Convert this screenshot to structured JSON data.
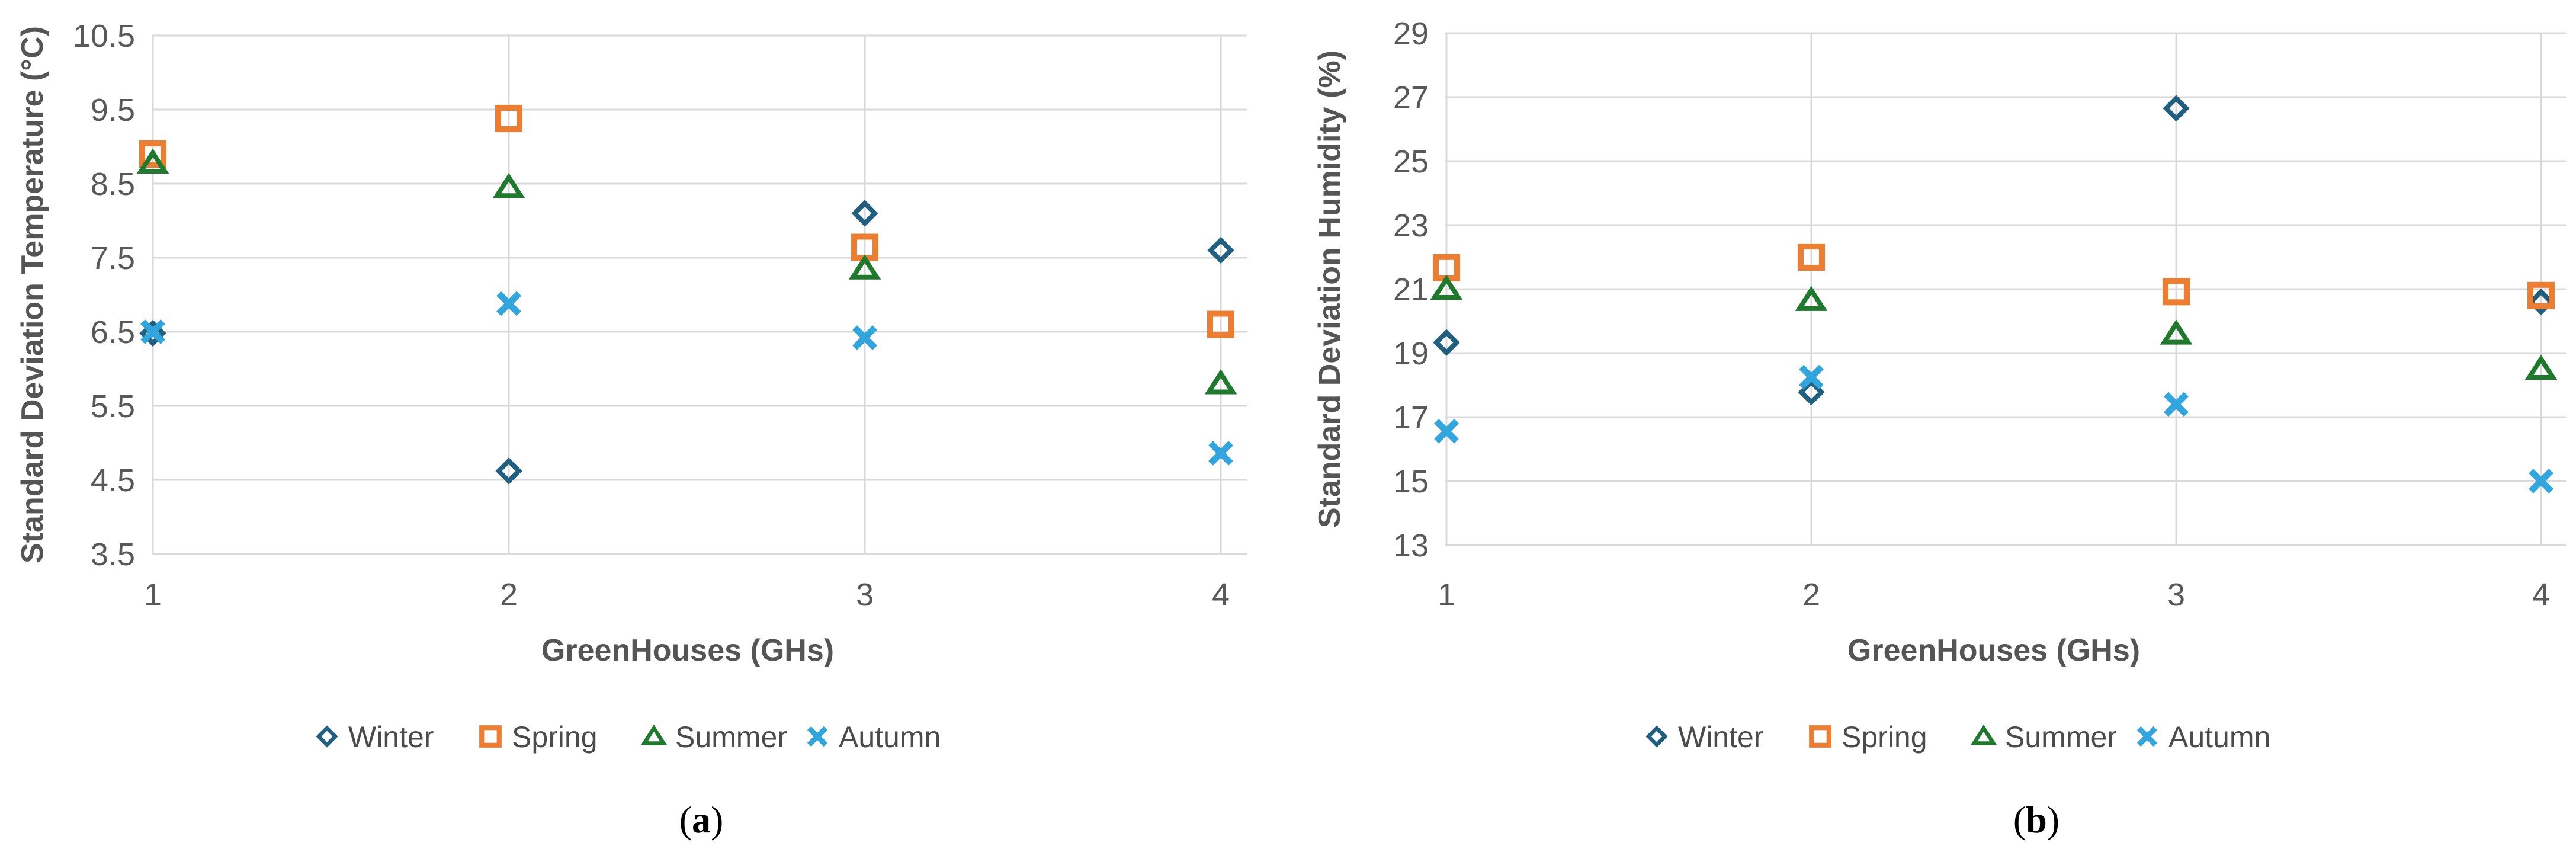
{
  "figure": {
    "background": "#ffffff",
    "style": {
      "grid_color": "#d9d9d9",
      "tick_color": "#595959",
      "title_color": "#555555",
      "legend_text_color": "#4b4b4b",
      "caption_color": "#000000"
    },
    "captions": [
      {
        "open": "(",
        "letter": "a",
        "close": ")"
      },
      {
        "open": "(",
        "letter": "b",
        "close": ")"
      }
    ]
  },
  "chart_data": [
    {
      "type": "scatter",
      "panel": "a",
      "title": "",
      "xlabel": "GreenHouses (GHs)",
      "ylabel": "Standard Deviation Temperature (°C)",
      "categories": [
        1,
        2,
        3,
        4
      ],
      "ylim": [
        3.5,
        10.5
      ],
      "yticks": [
        10.5,
        9.5,
        8.5,
        7.5,
        6.5,
        5.5,
        4.5,
        3.5
      ],
      "grid": "horizontal and vertical gridlines, light gray",
      "legend_position": "bottom",
      "series": [
        {
          "name": "Winter",
          "marker": "diamond",
          "color": "#215f80",
          "values": [
            6.48,
            4.62,
            8.1,
            7.6
          ]
        },
        {
          "name": "Spring",
          "marker": "square",
          "color": "#ed7d31",
          "values": [
            8.9,
            9.38,
            7.64,
            6.6
          ]
        },
        {
          "name": "Summer",
          "marker": "triangle",
          "color": "#1f7a2d",
          "values": [
            8.78,
            8.45,
            7.35,
            5.8
          ]
        },
        {
          "name": "Autumn",
          "marker": "x",
          "color": "#30a5de",
          "values": [
            6.5,
            6.88,
            6.42,
            4.86
          ]
        }
      ]
    },
    {
      "type": "scatter",
      "panel": "b",
      "title": "",
      "xlabel": "GreenHouses (GHs)",
      "ylabel": "Standard Deviation Humidity (%)",
      "categories": [
        1,
        2,
        3,
        4
      ],
      "ylim": [
        13,
        29
      ],
      "yticks": [
        29,
        27,
        25,
        23,
        21,
        19,
        17,
        15,
        13
      ],
      "grid": "horizontal and vertical gridlines, light gray",
      "legend_position": "bottom",
      "series": [
        {
          "name": "Winter",
          "marker": "diamond",
          "color": "#215f80",
          "values": [
            19.33,
            17.78,
            26.65,
            20.6
          ]
        },
        {
          "name": "Spring",
          "marker": "square",
          "color": "#ed7d31",
          "values": [
            21.67,
            22.0,
            20.92,
            20.8
          ]
        },
        {
          "name": "Summer",
          "marker": "triangle",
          "color": "#1f7a2d",
          "values": [
            21.0,
            20.65,
            19.6,
            18.5
          ]
        },
        {
          "name": "Autumn",
          "marker": "x",
          "color": "#30a5de",
          "values": [
            16.56,
            18.25,
            17.4,
            15.0
          ]
        }
      ]
    }
  ]
}
